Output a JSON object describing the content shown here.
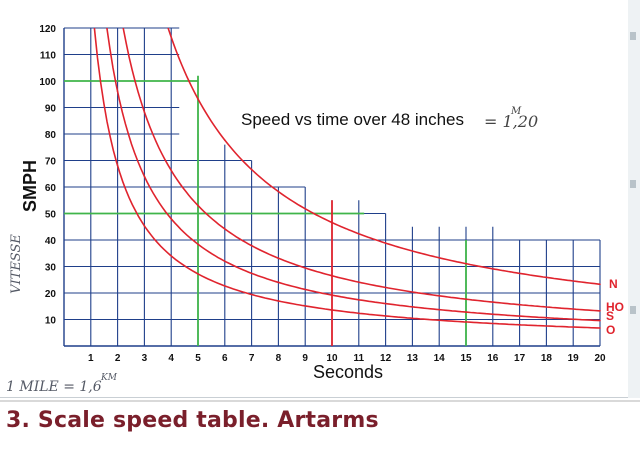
{
  "chart_data": {
    "type": "line",
    "title": "Speed vs time over 48 inches",
    "title_note": "= 1,20",
    "title_note_superscript": "M",
    "xlabel": "Seconds",
    "ylabel": "SMPH",
    "ylabel_handwritten": "VITESSE",
    "footnote_handwritten": "1 MILE = 1,6",
    "footnote_superscript": "KM",
    "x_ticks": [
      1,
      2,
      3,
      4,
      5,
      6,
      7,
      8,
      9,
      10,
      11,
      12,
      13,
      14,
      15,
      16,
      17,
      18,
      19,
      20
    ],
    "y_ticks": [
      10,
      20,
      30,
      40,
      50,
      60,
      70,
      80,
      90,
      100,
      110,
      120
    ],
    "xlim": [
      0,
      20
    ],
    "ylim": [
      0,
      120
    ],
    "grid": true,
    "series": [
      {
        "name": "N",
        "k": 466,
        "x": [
          4,
          5,
          6,
          7,
          8,
          10,
          12,
          15,
          20
        ],
        "values": [
          116.5,
          93.2,
          77.7,
          66.6,
          58.3,
          46.6,
          38.8,
          31.1,
          23.3
        ]
      },
      {
        "name": "HO",
        "k": 265,
        "x": [
          2,
          3,
          4,
          5,
          6,
          8,
          10,
          15,
          20
        ],
        "values": [
          132.5,
          88.3,
          66.3,
          53,
          44.2,
          33.1,
          26.5,
          17.7,
          13.3
        ]
      },
      {
        "name": "S",
        "k": 192,
        "x": [
          2,
          3,
          4,
          5,
          6,
          8,
          10,
          15,
          20
        ],
        "values": [
          96,
          64,
          48,
          38.4,
          32,
          24,
          19.2,
          12.8,
          9.6
        ]
      },
      {
        "name": "O",
        "k": 136,
        "x": [
          2,
          3,
          4,
          5,
          6,
          8,
          10,
          15,
          20
        ],
        "values": [
          68,
          45.3,
          34,
          27.2,
          22.7,
          17,
          13.6,
          9.1,
          6.8
        ]
      }
    ],
    "highlight_lines": [
      {
        "kind": "horizontal",
        "y": 100,
        "x_to": 5
      },
      {
        "kind": "horizontal",
        "y": 50,
        "x_to": 11.2
      },
      {
        "kind": "vertical",
        "x": 5,
        "y_to": 102
      },
      {
        "kind": "vertical",
        "x": 15,
        "y_to": 40
      },
      {
        "kind": "vertical-red",
        "x": 10,
        "y_to": 55
      }
    ]
  },
  "caption": "3. Scale speed table. Artarms",
  "colors": {
    "grid": "#1f3f8a",
    "curve": "#e0242e",
    "highlight": "#3fb54a",
    "label_red": "#e0242e",
    "caption": "#7a1f2b",
    "handwriting": "#555a66"
  }
}
